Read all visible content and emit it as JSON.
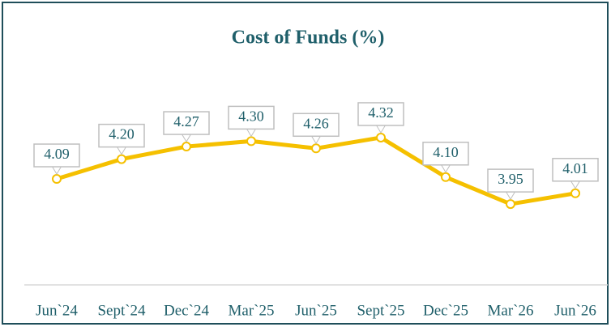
{
  "chart_data": {
    "type": "line",
    "title": "Cost of Funds (%)",
    "categories": [
      "Jun`24",
      "Sept`24",
      "Dec`24",
      "Mar`25",
      "Jun`25",
      "Sept`25",
      "Dec`25",
      "Mar`26",
      "Jun`26"
    ],
    "series": [
      {
        "name": "Cost of Funds",
        "color": "#f5c000",
        "values": [
          4.09,
          4.2,
          4.27,
          4.3,
          4.26,
          4.32,
          4.1,
          3.95,
          4.01
        ],
        "value_labels": [
          "4.09",
          "4.20",
          "4.27",
          "4.30",
          "4.26",
          "4.32",
          "4.10",
          "3.95",
          "4.01"
        ]
      }
    ],
    "ylim": [
      3.5,
      4.5
    ]
  }
}
